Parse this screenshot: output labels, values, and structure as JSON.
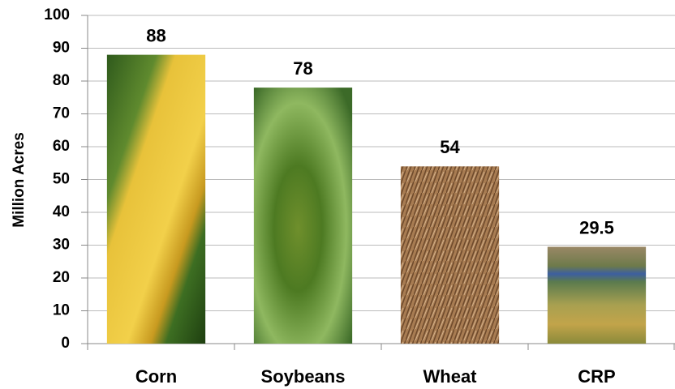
{
  "chart_data": {
    "type": "bar",
    "y_label": "Million Acres",
    "categories": [
      "Corn",
      "Soybeans",
      "Wheat",
      "CRP"
    ],
    "values": [
      88,
      78,
      54,
      29.5
    ],
    "ylim": [
      0,
      100
    ],
    "yticks": [
      0,
      10,
      20,
      30,
      40,
      50,
      60,
      70,
      80,
      90,
      100
    ],
    "grid": true
  }
}
